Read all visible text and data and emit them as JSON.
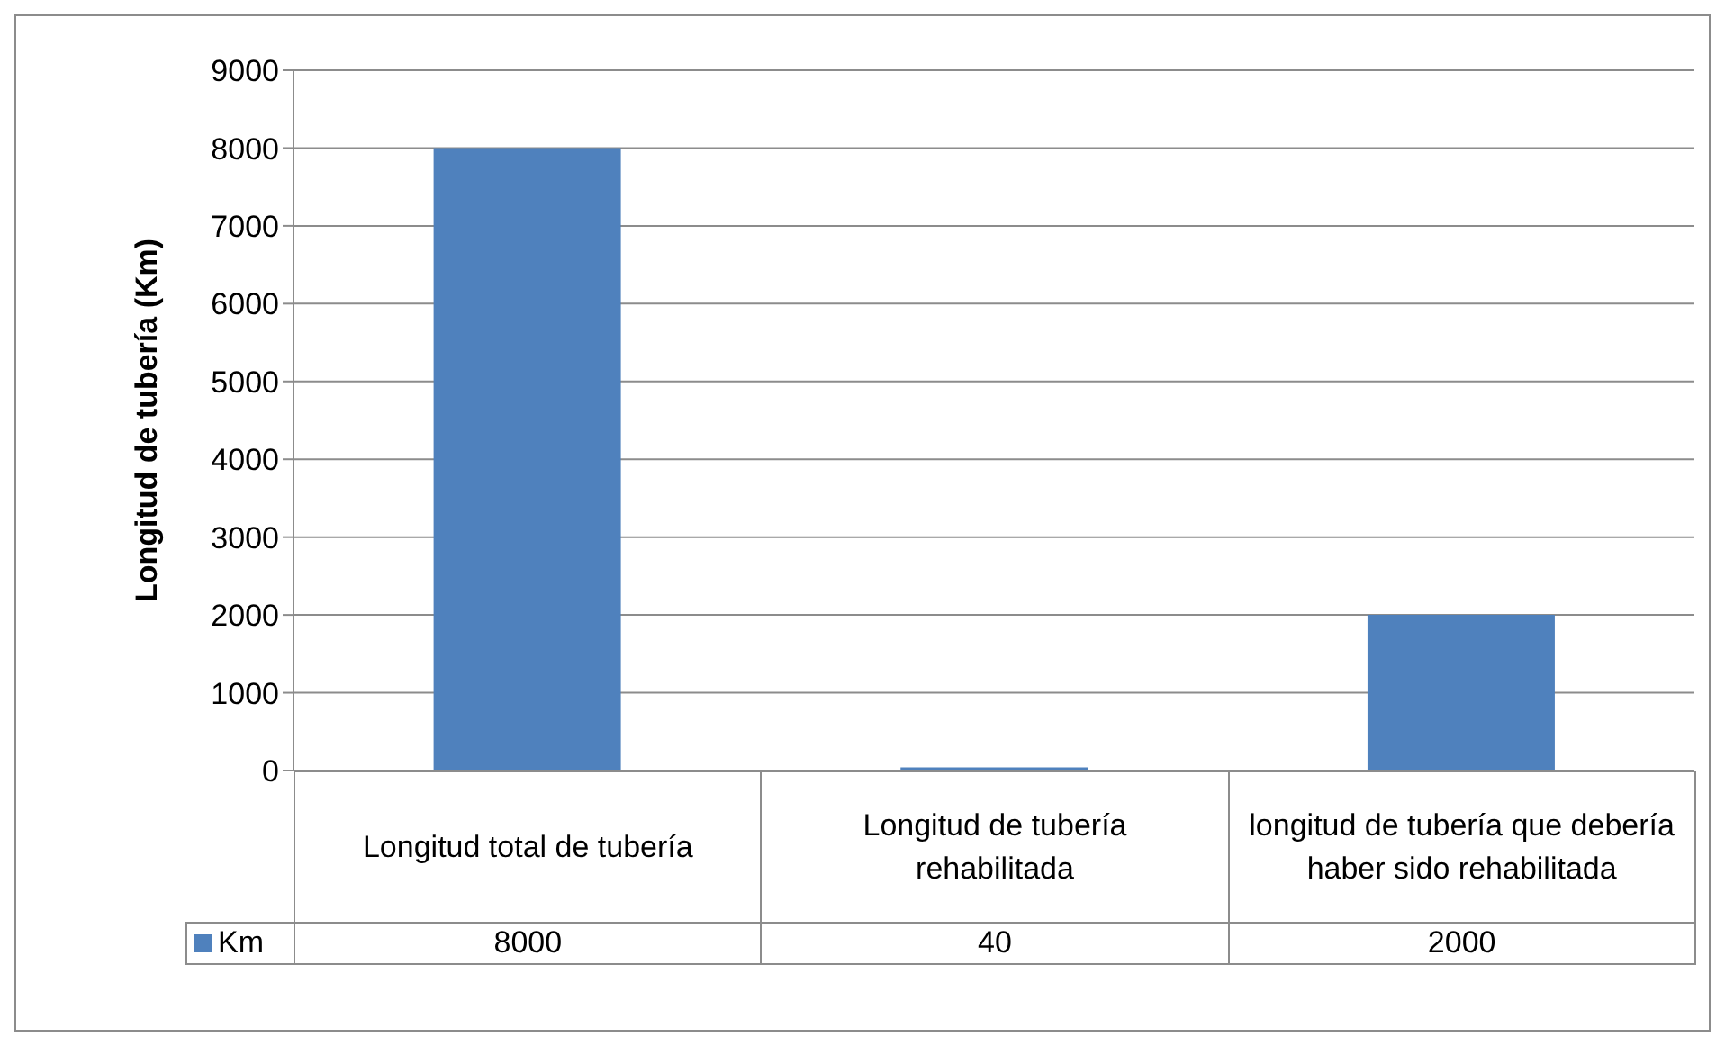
{
  "chart_data": {
    "type": "bar",
    "ylabel": "Longitud de tubería (Km)",
    "categories": [
      "Longitud total de tubería",
      "Longitud de tubería rehabilitada",
      "longitud de tubería que debería haber sido rehabilitada"
    ],
    "series": [
      {
        "name": "Km",
        "color": "#4f81bd",
        "values": [
          8000,
          40,
          2000
        ]
      }
    ],
    "ylim": [
      0,
      9000
    ],
    "yticks": [
      0,
      1000,
      2000,
      3000,
      4000,
      5000,
      6000,
      7000,
      8000,
      9000
    ],
    "grid": "y",
    "legend": "bottom",
    "data_labels": true
  }
}
